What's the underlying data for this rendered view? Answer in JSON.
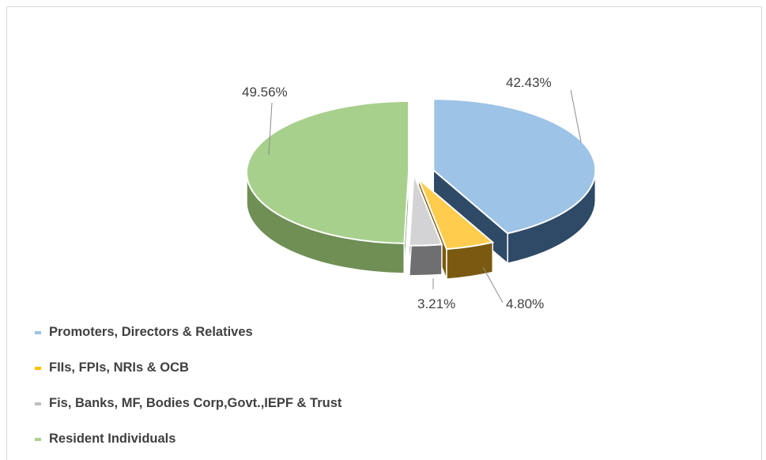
{
  "chart_data": {
    "type": "pie",
    "style": "3d-exploded",
    "title": "",
    "slices": [
      {
        "label": "Promoters, Directors & Relatives",
        "value": 42.43,
        "display": "42.43%",
        "color": "#9dc3e6",
        "side_color": "#2f4a66"
      },
      {
        "label": "FIIs, FPIs, NRIs & OCB",
        "value": 4.8,
        "display": "4.80%",
        "color": "#ffcc4d",
        "side_color": "#7a5a10"
      },
      {
        "label": "Fis, Banks, MF, Bodies Corp,Govt.,IEPF & Trust",
        "value": 3.21,
        "display": "3.21%",
        "color": "#d3d3d6",
        "side_color": "#6f6f72"
      },
      {
        "label": "Resident Individuals",
        "value": 49.56,
        "display": "49.56%",
        "color": "#a8d08d",
        "side_color": "#6f8f55"
      }
    ],
    "legend": {
      "position": "bottom-left",
      "items": [
        {
          "label": "Promoters, Directors & Relatives",
          "color": "#9dc3e6"
        },
        {
          "label": "FIIs, FPIs, NRIs & OCB",
          "color": "#ffc000"
        },
        {
          "label": "Fis, Banks, MF, Bodies Corp,Govt.,IEPF & Trust",
          "color": "#bfbfbf"
        },
        {
          "label": "Resident Individuals",
          "color": "#a9d18e"
        }
      ]
    }
  }
}
